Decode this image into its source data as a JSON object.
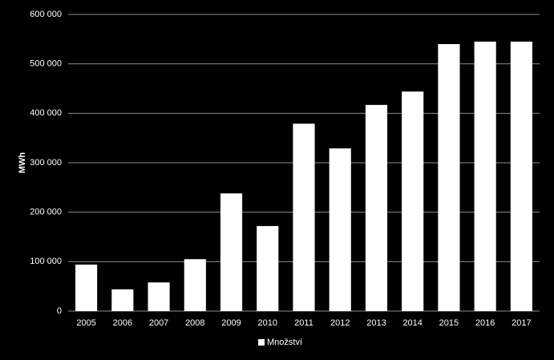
{
  "chart_data": {
    "type": "bar",
    "y_label": "MWh",
    "categories": [
      "2005",
      "2006",
      "2007",
      "2008",
      "2009",
      "2010",
      "2011",
      "2012",
      "2013",
      "2014",
      "2015",
      "2016",
      "2017"
    ],
    "series": [
      {
        "name": "Množství",
        "color": "#ffffff",
        "values": [
          94000,
          44000,
          58000,
          105000,
          238000,
          172000,
          379000,
          329000,
          417000,
          444000,
          540000,
          545000,
          545000
        ]
      }
    ],
    "ylim": [
      0,
      600000
    ],
    "yticks": [
      0,
      {
        "value": 100000,
        "label": "100 000"
      },
      {
        "value": 200000,
        "label": "200 000"
      },
      {
        "value": 300000,
        "label": "300 000"
      },
      {
        "value": 400000,
        "label": "400 000"
      },
      {
        "value": 500000,
        "label": "500 000"
      },
      {
        "value": 600000,
        "label": "600 000"
      }
    ],
    "grid": true
  }
}
